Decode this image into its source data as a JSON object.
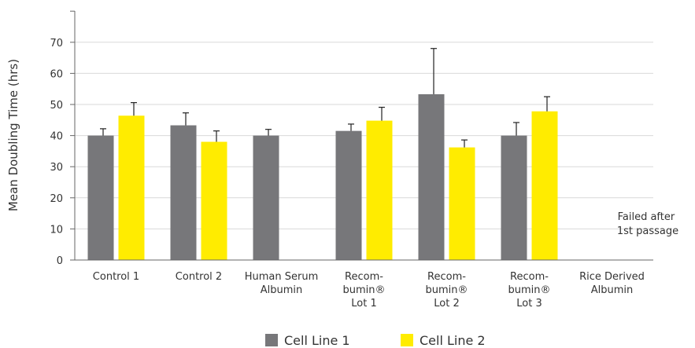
{
  "chart_data": {
    "type": "bar",
    "ylabel": "Mean Doubling Time (hrs)",
    "ylim": [
      0,
      80
    ],
    "yticks": [
      0,
      10,
      20,
      30,
      40,
      50,
      60,
      70
    ],
    "grid": true,
    "legend_position": "bottom",
    "categories": [
      [
        "Control 1"
      ],
      [
        "Control 2"
      ],
      [
        "Human Serum",
        "Albumin"
      ],
      [
        "Recom-",
        "bumin®",
        "Lot 1"
      ],
      [
        "Recom-",
        "bumin®",
        "Lot 2"
      ],
      [
        "Recom-",
        "bumin®",
        "Lot 3"
      ],
      [
        "Rice Derived",
        "Albumin"
      ]
    ],
    "series": [
      {
        "name": "Cell Line 1",
        "color": "#77777a",
        "values": [
          40,
          43.3,
          40,
          41.5,
          53.3,
          40,
          null
        ],
        "errors": [
          2.2,
          4,
          2,
          2.2,
          14.7,
          4.2,
          null
        ]
      },
      {
        "name": "Cell Line 2",
        "color": "#ffec00",
        "values": [
          46.4,
          38,
          null,
          44.8,
          36.2,
          47.8,
          null
        ],
        "errors": [
          4.2,
          3.5,
          null,
          4.3,
          2.4,
          4.7,
          null
        ]
      }
    ],
    "annotation": [
      "Failed after",
      "1st passage"
    ]
  }
}
